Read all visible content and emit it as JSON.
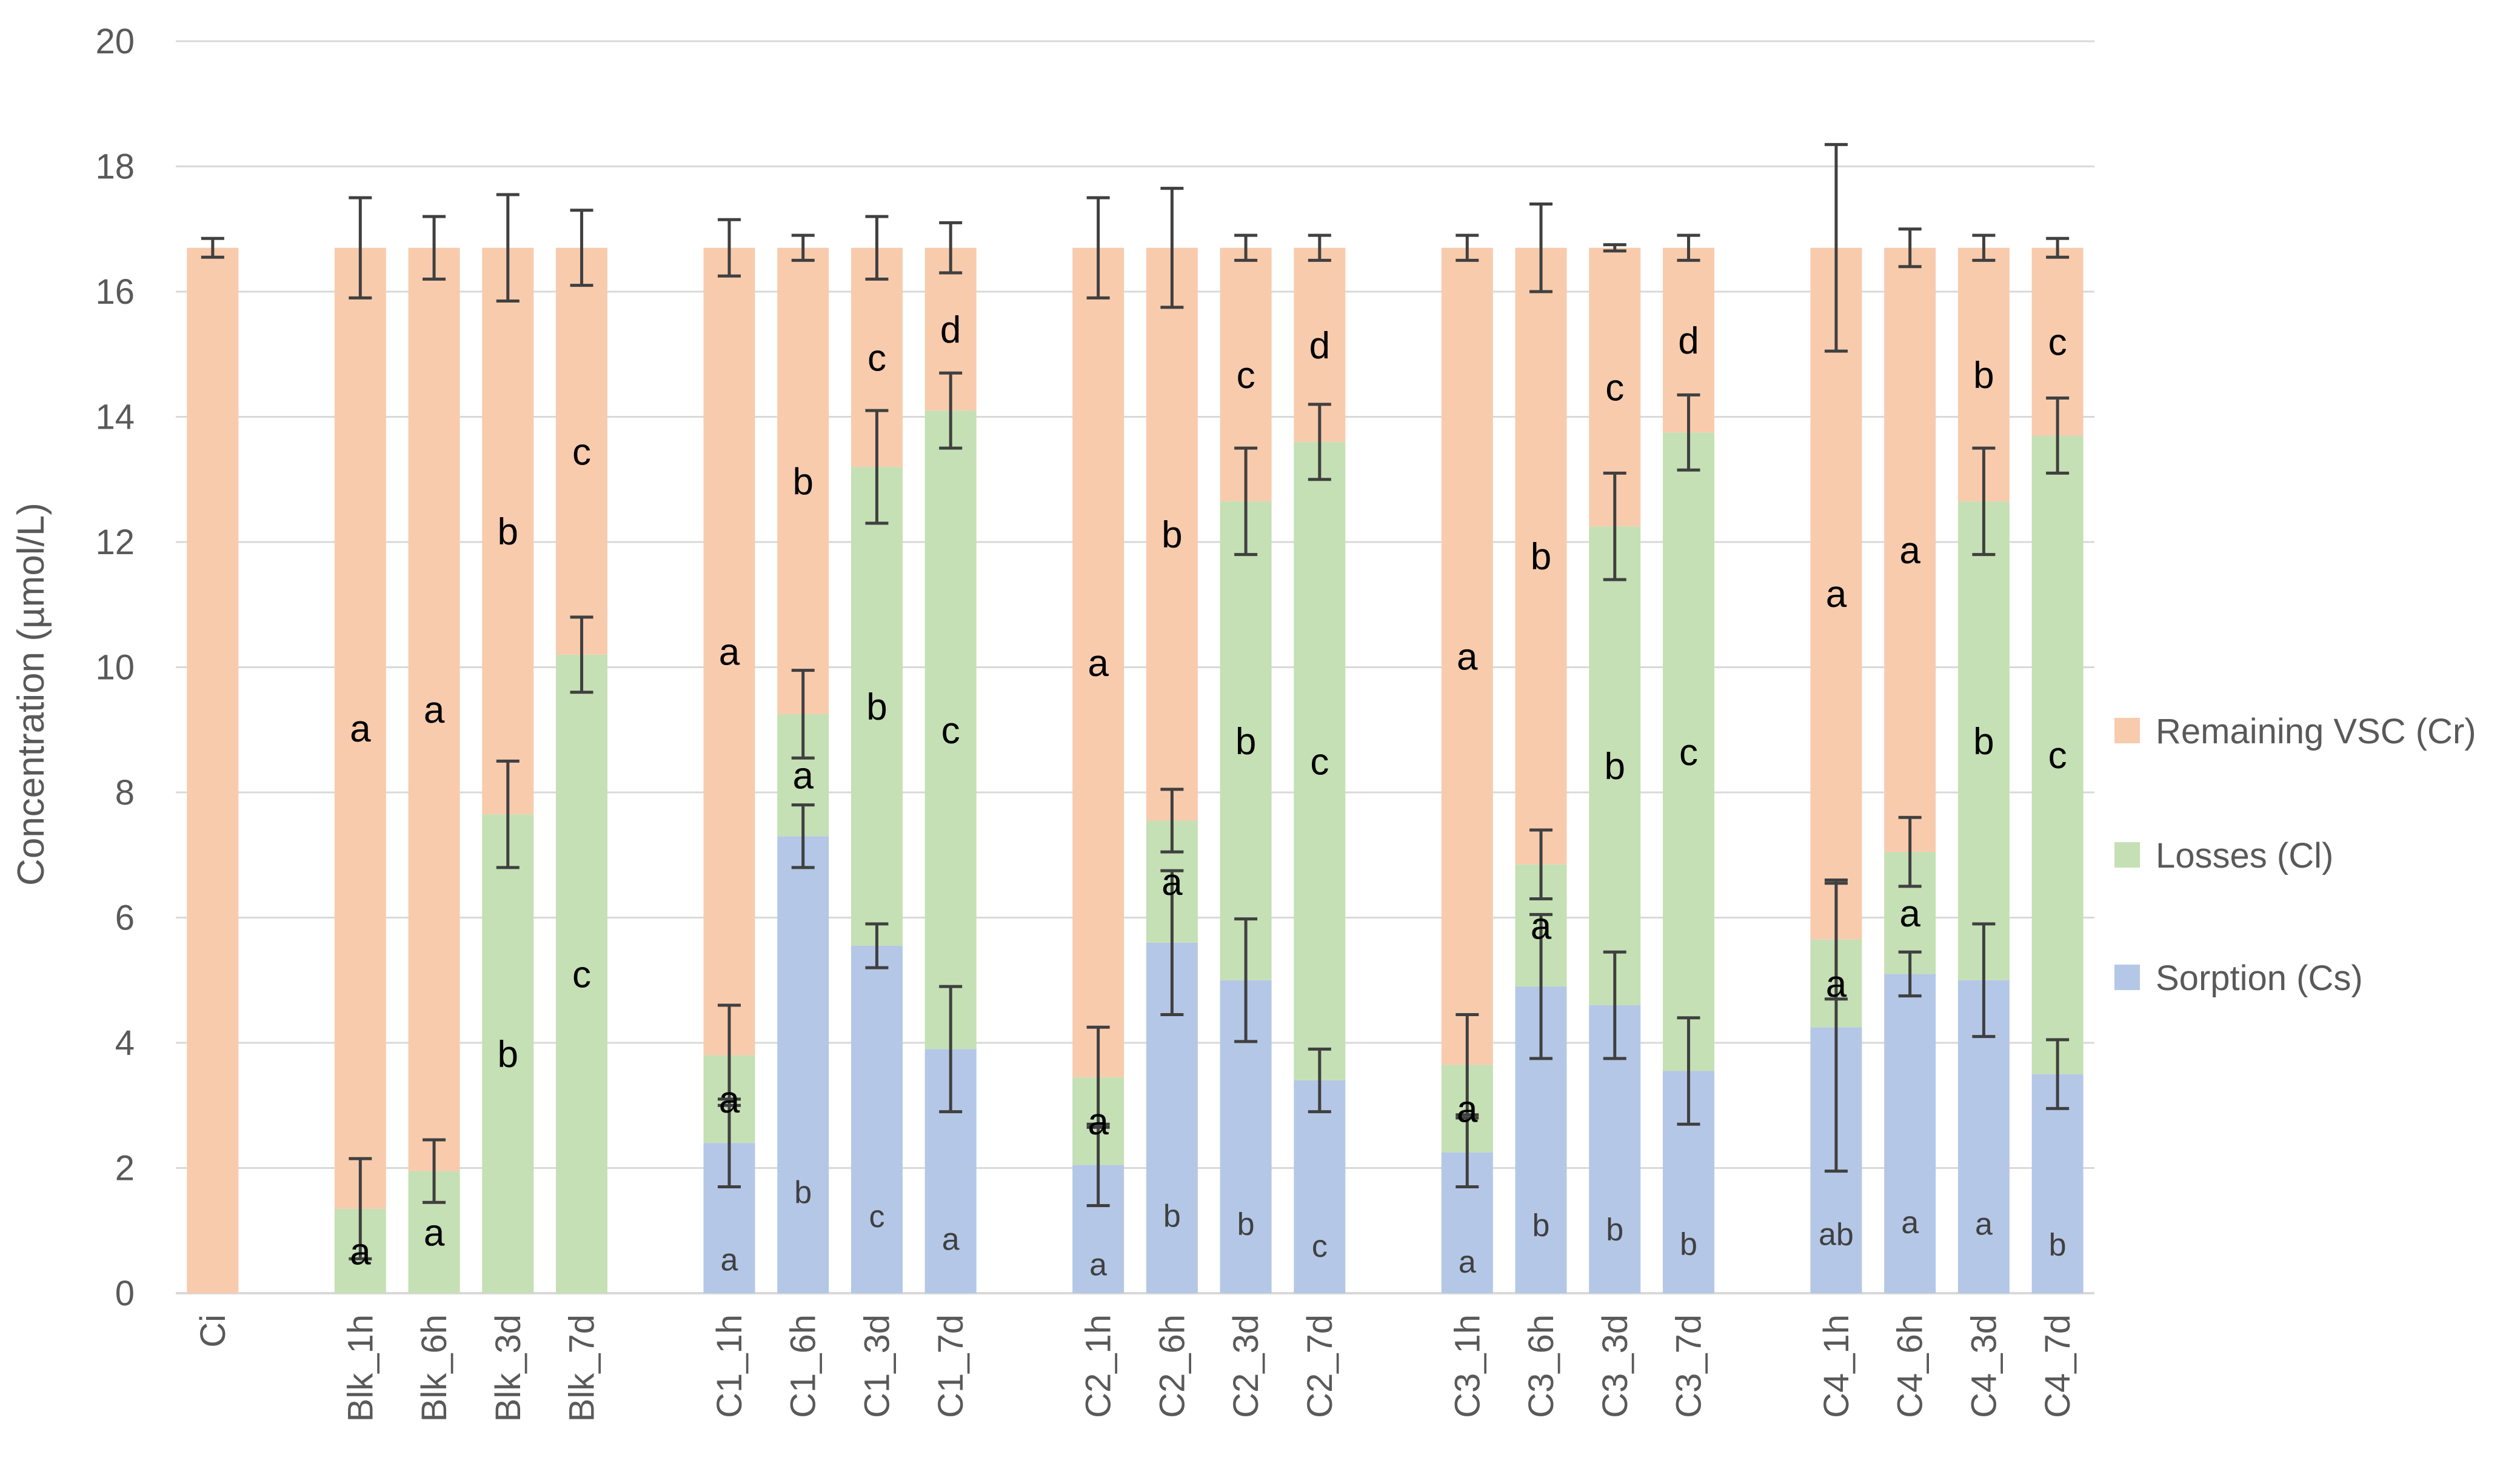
{
  "chart_data": {
    "type": "bar",
    "stacked": true,
    "title": "",
    "xlabel": "",
    "ylabel": "Concentration (µmol/L)",
    "ylim": [
      0,
      20
    ],
    "yticks": [
      "0",
      "2",
      "4",
      "6",
      "8",
      "10",
      "12",
      "14",
      "16",
      "18",
      "20"
    ],
    "grid": true,
    "legend_position": "right",
    "colors": {
      "remaining": "#F8CBAD",
      "losses": "#C5E0B4",
      "sorption": "#B4C7E7",
      "gridline": "#D9D9D9",
      "errorbar": "#404040",
      "axis_text": "#595959"
    },
    "legend": [
      {
        "key": "remaining",
        "label": "Remaining VSC (Cr)"
      },
      {
        "key": "losses",
        "label": "Losses (Cl)"
      },
      {
        "key": "sorption",
        "label": "Sorption (Cs)"
      }
    ],
    "categories": [
      "Ci",
      "",
      "Blk_1h",
      "Blk_6h",
      "Blk_3d",
      "Blk_7d",
      "",
      "C1_1h",
      "C1_6h",
      "C1_3d",
      "C1_7d",
      "",
      "C2_1h",
      "C2_6h",
      "C2_3d",
      "C2_7d",
      "",
      "C3_1h",
      "C3_6h",
      "C3_3d",
      "C3_7d",
      "",
      "C4_1h",
      "C4_6h",
      "C4_3d",
      "C4_7d"
    ],
    "series": [
      {
        "name": "Sorption (Cs)",
        "key": "sorption",
        "values": [
          0,
          null,
          0,
          0,
          0,
          0,
          null,
          2.4,
          7.3,
          5.55,
          3.9,
          null,
          2.05,
          5.6,
          5.0,
          3.4,
          null,
          2.25,
          4.9,
          4.6,
          3.55,
          null,
          4.25,
          5.1,
          5.0,
          3.5
        ],
        "errors": [
          null,
          null,
          null,
          null,
          null,
          null,
          null,
          0.7,
          0.5,
          0.35,
          1.0,
          null,
          0.65,
          1.15,
          0.98,
          0.5,
          null,
          0.55,
          1.15,
          0.85,
          0.85,
          null,
          2.3,
          0.35,
          0.9,
          0.55
        ],
        "letters": [
          "",
          "",
          "",
          "",
          "",
          "",
          "",
          "a",
          "b",
          "c",
          "a",
          "",
          "a",
          "b",
          "b",
          "c",
          "",
          "a",
          "b",
          "b",
          "b",
          "",
          "ab",
          "a",
          "a",
          "b"
        ]
      },
      {
        "name": "Losses (Cl)",
        "key": "losses",
        "values": [
          0,
          null,
          1.35,
          1.95,
          7.65,
          10.2,
          null,
          1.4,
          1.95,
          7.65,
          10.2,
          null,
          1.4,
          1.95,
          7.65,
          10.2,
          null,
          1.4,
          1.95,
          7.65,
          10.2,
          null,
          1.4,
          1.95,
          7.65,
          10.2
        ],
        "errors": [
          null,
          null,
          0.8,
          0.5,
          0.85,
          0.6,
          null,
          0.8,
          0.7,
          0.9,
          0.6,
          null,
          0.8,
          0.5,
          0.85,
          0.6,
          null,
          0.8,
          0.55,
          0.85,
          0.6,
          null,
          0.95,
          0.55,
          0.85,
          0.6
        ],
        "letters": [
          "",
          "",
          "a",
          "a",
          "b",
          "c",
          "",
          "a",
          "a",
          "b",
          "c",
          "",
          "a",
          "a",
          "b",
          "c",
          "",
          "a",
          "a",
          "b",
          "c",
          "",
          "a",
          "a",
          "b",
          "c"
        ]
      },
      {
        "name": "Remaining VSC (Cr)",
        "key": "remaining",
        "values": [
          16.7,
          null,
          15.35,
          14.75,
          9.05,
          6.5,
          null,
          12.9,
          7.45,
          3.5,
          2.6,
          null,
          13.25,
          9.15,
          4.05,
          3.1,
          null,
          13.05,
          9.85,
          4.45,
          2.95,
          null,
          11.05,
          9.65,
          4.05,
          3.0
        ],
        "errors": [
          0.15,
          null,
          0.8,
          0.5,
          0.85,
          0.6,
          null,
          0.45,
          0.2,
          0.5,
          0.4,
          null,
          0.8,
          0.95,
          0.2,
          0.2,
          null,
          0.2,
          0.7,
          0.05,
          0.2,
          null,
          1.65,
          0.3,
          0.2,
          0.15
        ],
        "letters": [
          "",
          "",
          "a",
          "a",
          "b",
          "c",
          "",
          "a",
          "b",
          "c",
          "d",
          "",
          "a",
          "b",
          "c",
          "d",
          "",
          "a",
          "b",
          "c",
          "d",
          "",
          "a",
          "a",
          "b",
          "c"
        ]
      }
    ]
  }
}
